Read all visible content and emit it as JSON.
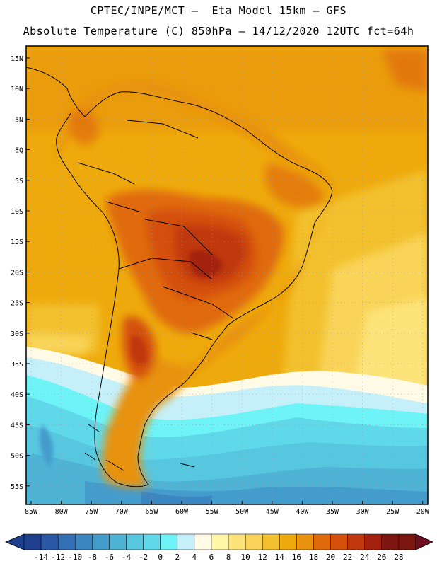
{
  "header": {
    "line1": "CPTEC/INPE/MCT –  Eta Model 15km – GFS",
    "line2": "Absolute Temperature (C) 850hPa – 14/12/2020 12UTC fct=64h"
  },
  "map": {
    "lat_labels": [
      "15N",
      "10N",
      "5N",
      "EQ",
      "5S",
      "10S",
      "15S",
      "20S",
      "25S",
      "30S",
      "35S",
      "40S",
      "45S",
      "50S",
      "55S"
    ],
    "lon_labels": [
      "85W",
      "80W",
      "75W",
      "70W",
      "65W",
      "60W",
      "55W",
      "50W",
      "45W",
      "40W",
      "35W",
      "30W",
      "25W",
      "20W"
    ]
  },
  "colorbar": {
    "labels": [
      "-14",
      "-12",
      "-10",
      "-8",
      "-6",
      "-4",
      "-2",
      "0",
      "2",
      "4",
      "6",
      "8",
      "10",
      "12",
      "14",
      "16",
      "18",
      "20",
      "22",
      "24",
      "26",
      "28"
    ],
    "colors": [
      "#1f3f8f",
      "#2a58a6",
      "#3370b5",
      "#3c86c2",
      "#449ccc",
      "#4fb3d6",
      "#57c7e0",
      "#5fd9ea",
      "#6ef3f7",
      "#c6f0f9",
      "#fffbe7",
      "#fff6a6",
      "#fde47a",
      "#f9d458",
      "#f3c12f",
      "#eeaa0c",
      "#e8920e",
      "#e06a0a",
      "#d4500a",
      "#c0380d",
      "#a3210e",
      "#7d1610",
      "#7a1510"
    ]
  }
}
